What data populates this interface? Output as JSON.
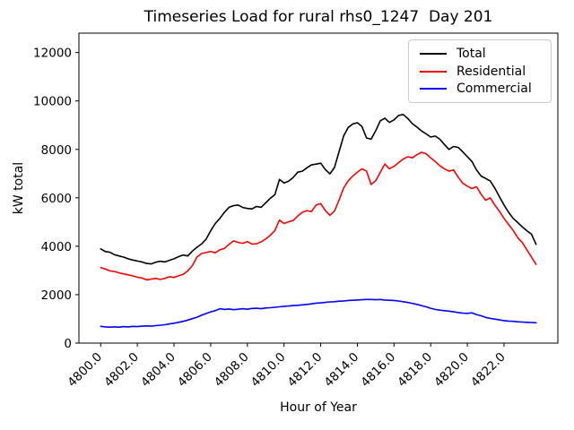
{
  "title": "Timeseries Load for rural rhs0_1247  Day 201",
  "axes": {
    "xlabel": "Hour of Year",
    "ylabel": "kW total"
  },
  "legend": {
    "position": "upper right",
    "items": [
      {
        "label": "Total",
        "color": "#000000"
      },
      {
        "label": "Residential",
        "color": "#ff0000"
      },
      {
        "label": "Commercial",
        "color": "#0000ff"
      }
    ]
  },
  "chart_data": {
    "type": "line",
    "title": "Timeseries Load for rural rhs0_1247  Day 201",
    "xlabel": "Hour of Year",
    "ylabel": "kW total",
    "grid": false,
    "legend_position": "upper right",
    "x_start": 4800.0,
    "x_step": 0.25,
    "n_points": 96,
    "xlim": [
      4798.8125,
      4824.9375
    ],
    "ylim": [
      0,
      12800
    ],
    "x_ticks": [
      4800,
      4802,
      4804,
      4806,
      4808,
      4810,
      4812,
      4814,
      4816,
      4818,
      4820,
      4822
    ],
    "x_tick_labels": [
      "4800.0",
      "4802.0",
      "4804.0",
      "4806.0",
      "4808.0",
      "4810.0",
      "4812.0",
      "4814.0",
      "4816.0",
      "4818.0",
      "4820.0",
      "4822.0"
    ],
    "x_tick_rotation_deg": 45,
    "y_ticks": [
      0,
      2000,
      4000,
      6000,
      8000,
      10000,
      12000
    ],
    "y_tick_labels": [
      "0",
      "2000",
      "4000",
      "6000",
      "8000",
      "10000",
      "12000"
    ],
    "series": [
      {
        "name": "Total",
        "color": "#000000",
        "values": [
          3890,
          3780,
          3750,
          3650,
          3600,
          3550,
          3480,
          3430,
          3390,
          3350,
          3290,
          3270,
          3340,
          3380,
          3350,
          3420,
          3480,
          3570,
          3640,
          3600,
          3800,
          3960,
          4090,
          4290,
          4640,
          4940,
          5150,
          5400,
          5610,
          5680,
          5700,
          5600,
          5560,
          5540,
          5640,
          5610,
          5790,
          5980,
          6130,
          6760,
          6610,
          6690,
          6840,
          7060,
          7100,
          7240,
          7360,
          7390,
          7430,
          7170,
          6990,
          7250,
          7900,
          8550,
          8900,
          9050,
          9100,
          8950,
          8470,
          8420,
          8770,
          9180,
          9290,
          9110,
          9220,
          9400,
          9440,
          9280,
          9060,
          8920,
          8760,
          8640,
          8510,
          8550,
          8420,
          8200,
          8000,
          8120,
          8080,
          7900,
          7700,
          7500,
          7150,
          6900,
          6800,
          6700,
          6400,
          6050,
          5700,
          5400,
          5150,
          4980,
          4800,
          4640,
          4500,
          4080
        ]
      },
      {
        "name": "Residential",
        "color": "#ff0000",
        "values": [
          3120,
          3060,
          2980,
          2960,
          2900,
          2860,
          2820,
          2780,
          2720,
          2690,
          2610,
          2640,
          2670,
          2630,
          2670,
          2740,
          2710,
          2780,
          2840,
          2980,
          3200,
          3550,
          3700,
          3740,
          3790,
          3730,
          3850,
          3910,
          4080,
          4220,
          4160,
          4120,
          4190,
          4090,
          4100,
          4180,
          4300,
          4450,
          4650,
          5080,
          4940,
          5010,
          5060,
          5250,
          5400,
          5470,
          5430,
          5700,
          5760,
          5480,
          5280,
          5450,
          5900,
          6400,
          6700,
          6900,
          7050,
          7200,
          7100,
          6550,
          6700,
          7050,
          7400,
          7200,
          7300,
          7450,
          7600,
          7700,
          7650,
          7780,
          7880,
          7820,
          7650,
          7500,
          7320,
          7200,
          7100,
          7150,
          6850,
          6600,
          6480,
          6380,
          6460,
          6150,
          5900,
          6000,
          5700,
          5450,
          5150,
          4900,
          4650,
          4350,
          4150,
          3850,
          3550,
          3250
        ]
      },
      {
        "name": "Commercial",
        "color": "#0000ff",
        "values": [
          690,
          670,
          660,
          670,
          660,
          680,
          670,
          690,
          680,
          700,
          710,
          700,
          720,
          740,
          760,
          790,
          820,
          860,
          900,
          950,
          1010,
          1070,
          1150,
          1220,
          1290,
          1340,
          1420,
          1390,
          1410,
          1380,
          1400,
          1420,
          1400,
          1430,
          1440,
          1420,
          1450,
          1460,
          1480,
          1500,
          1520,
          1530,
          1550,
          1560,
          1580,
          1600,
          1620,
          1650,
          1660,
          1680,
          1700,
          1710,
          1730,
          1740,
          1760,
          1770,
          1780,
          1790,
          1800,
          1800,
          1790,
          1800,
          1780,
          1770,
          1760,
          1740,
          1710,
          1680,
          1640,
          1600,
          1550,
          1500,
          1440,
          1390,
          1360,
          1340,
          1320,
          1290,
          1260,
          1240,
          1230,
          1250,
          1180,
          1130,
          1060,
          1020,
          990,
          960,
          930,
          910,
          900,
          880,
          870,
          860,
          850,
          840
        ]
      }
    ]
  }
}
